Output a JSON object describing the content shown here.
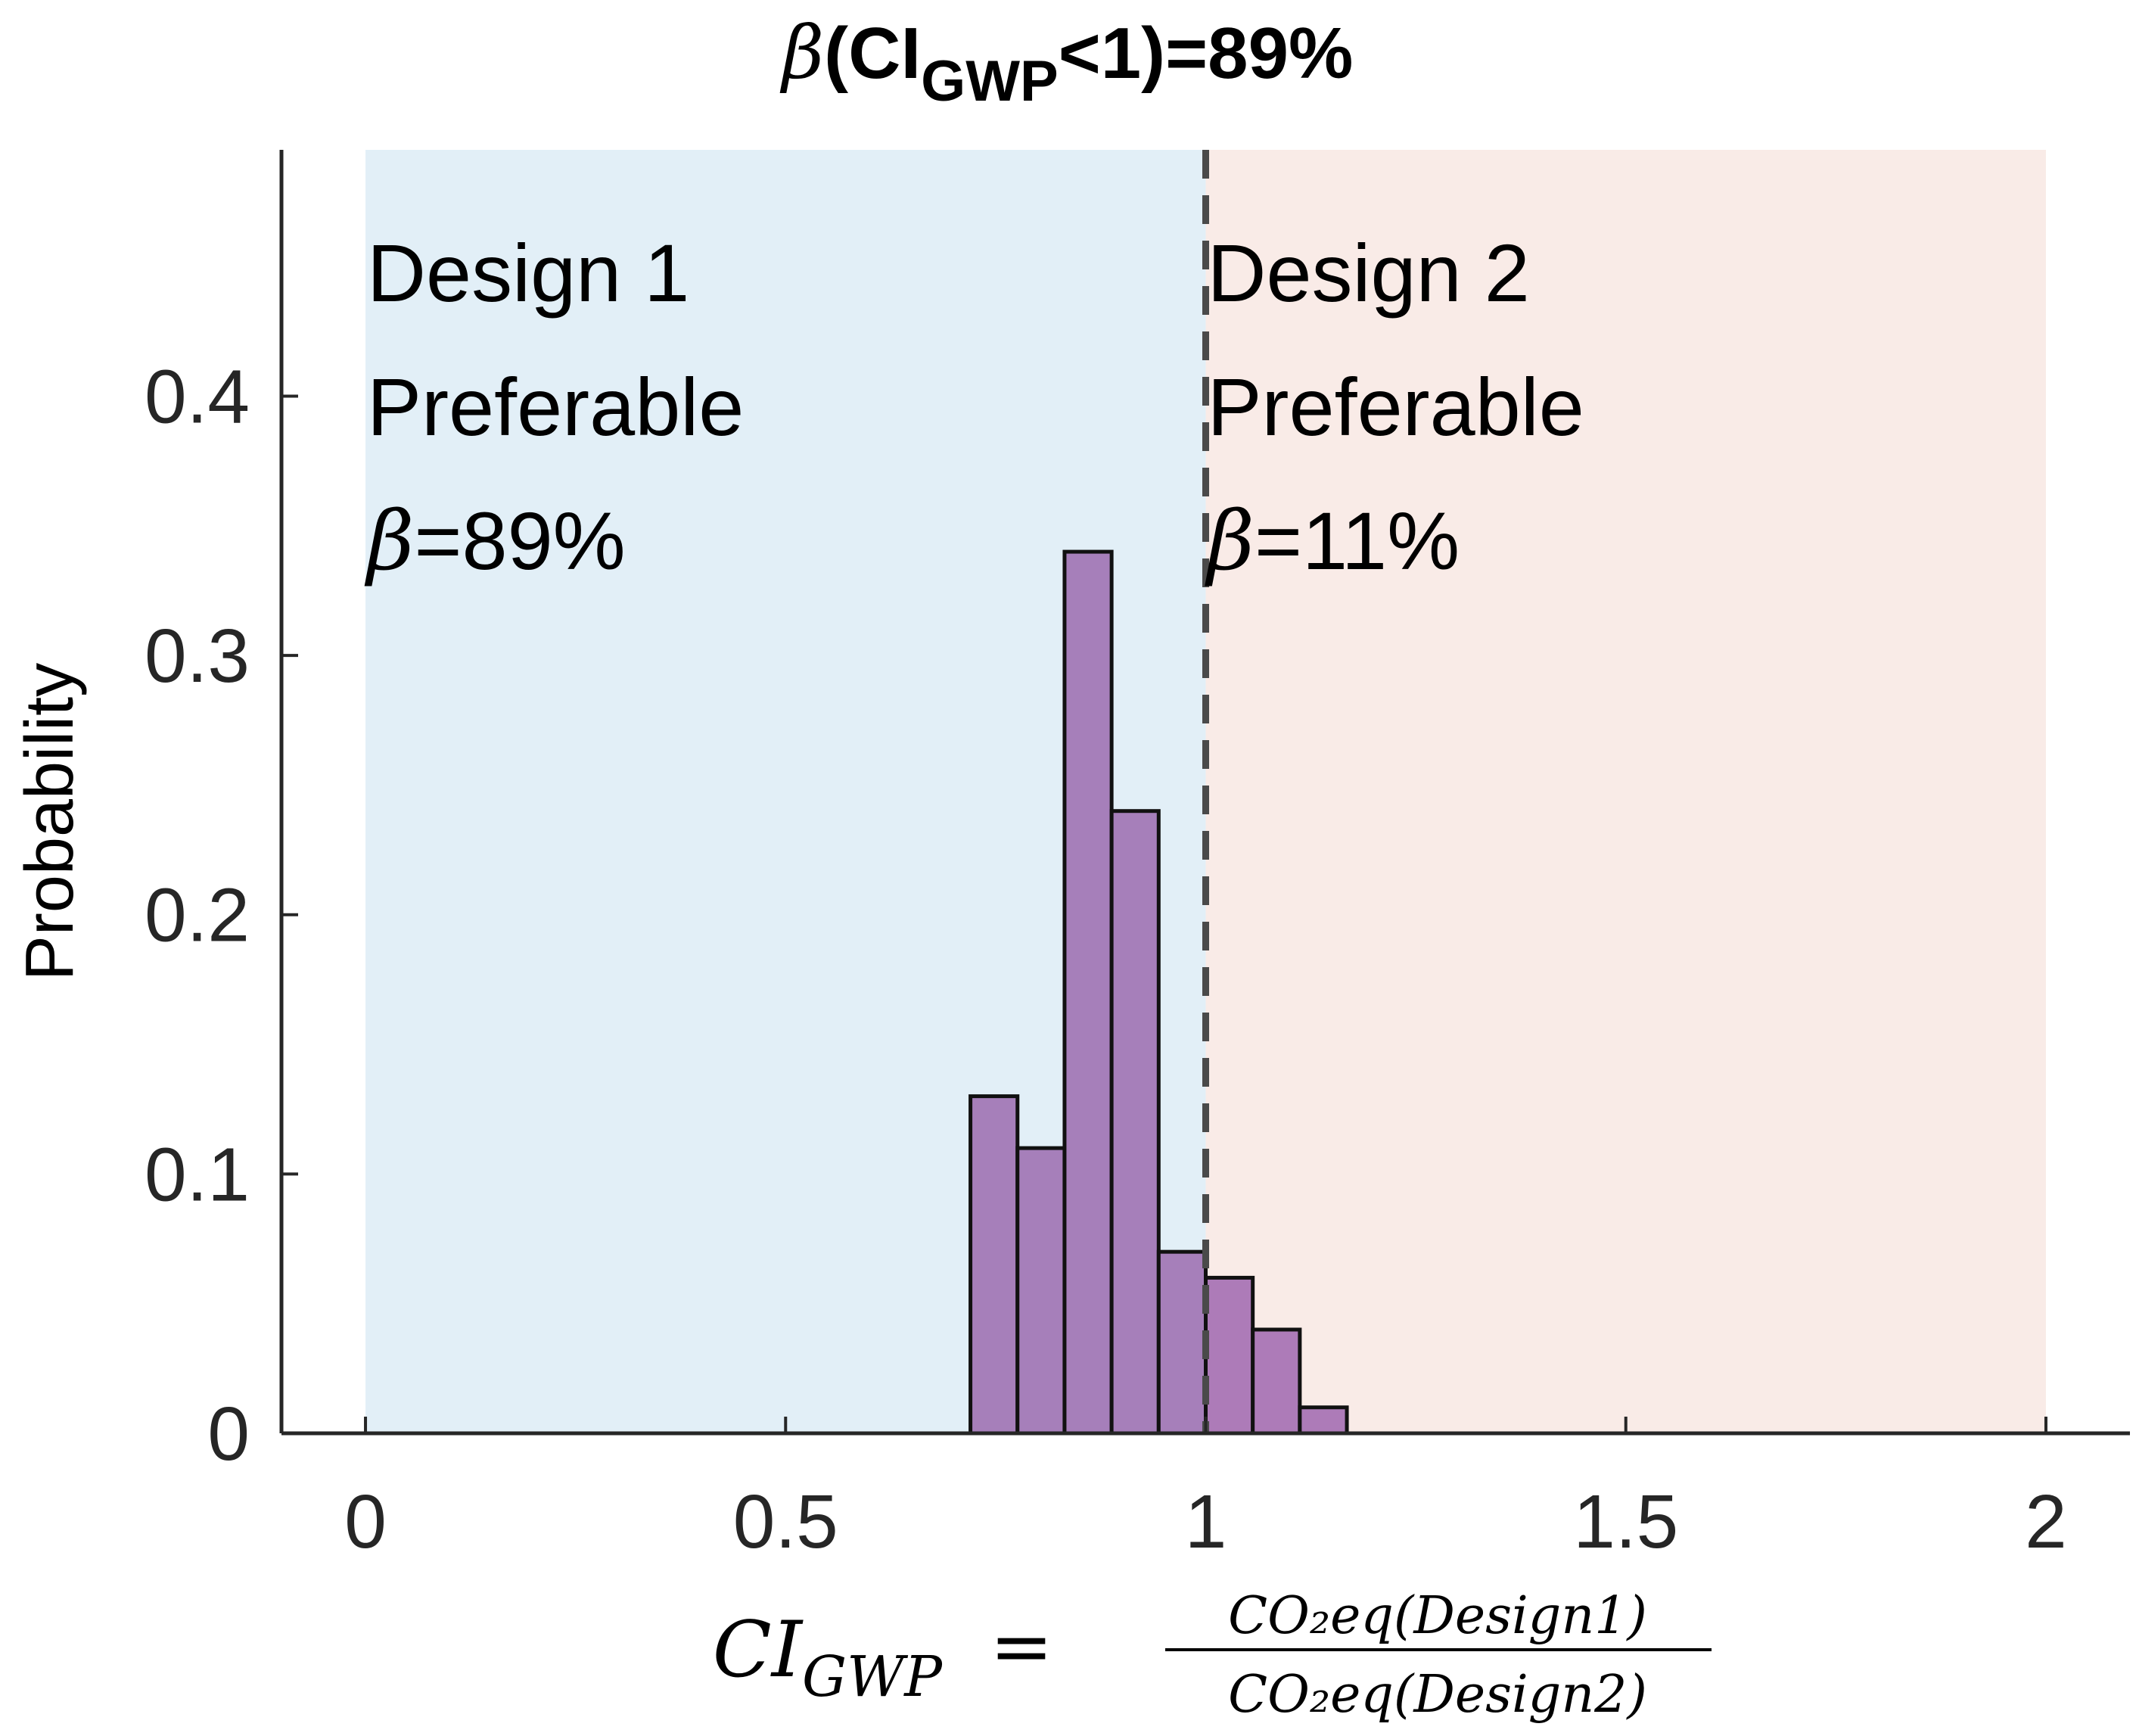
{
  "chart_data": {
    "type": "bar",
    "title": {
      "prefix": "β",
      "main": "(CI",
      "sub": "GWP",
      "suffix": "<1)=89%"
    },
    "ylabel": "Probability",
    "xlabel": {
      "lhs": "CI",
      "lhs_sub": "GWP",
      "equals": "=",
      "numerator": "CO₂eq(Design1)",
      "denominator": "CO₂eq(Design2)"
    },
    "xlim": [
      -0.1,
      2.1
    ],
    "ylim": [
      0,
      0.495
    ],
    "xticks": [
      0,
      0.5,
      1,
      1.5,
      2
    ],
    "xtick_labels": [
      "0",
      "0.5",
      "1",
      "1.5",
      "2"
    ],
    "yticks": [
      0,
      0.1,
      0.2,
      0.3,
      0.4
    ],
    "ytick_labels": [
      "0",
      "0.1",
      "0.2",
      "0.3",
      "0.4"
    ],
    "bin_edges": [
      0.72,
      0.776,
      0.832,
      0.888,
      0.944,
      1.0,
      1.056,
      1.112,
      1.168
    ],
    "values": [
      0.13,
      0.11,
      0.34,
      0.24,
      0.07,
      0.06,
      0.04,
      0.01
    ],
    "threshold": 1,
    "regions": [
      {
        "x0": 0,
        "x1": 1,
        "color": "#e2eff7",
        "lines": [
          "Design 1",
          "Preferable",
          "β",
          "=89%"
        ]
      },
      {
        "x0": 1,
        "x1": 2,
        "color": "#f9ebe7",
        "lines": [
          "Design 2",
          "Preferable",
          "β",
          "=11%"
        ]
      }
    ],
    "colors": {
      "bar_fill": "#a67fba",
      "bar_fill_right": "#ad7bb8",
      "bar_edge": "#111111",
      "axis": "#262626",
      "threshold_line": "#4a4a4a"
    }
  }
}
